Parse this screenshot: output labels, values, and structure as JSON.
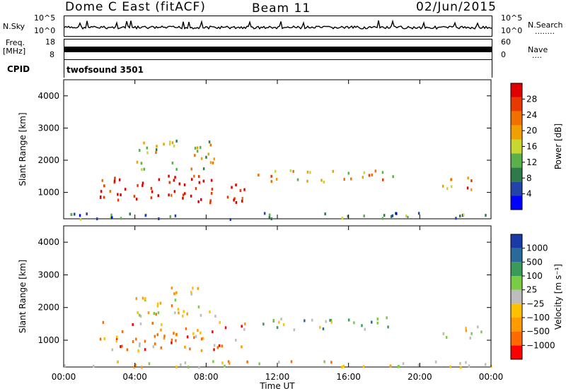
{
  "header": {
    "title": "Dome C East (fitACF)",
    "beam": "Beam 11",
    "date": "02/Jun/2015"
  },
  "nsky_panel": {
    "left_label": "N.Sky",
    "right_label": "N.Search",
    "left_ticks": [
      "10^5",
      "10^0"
    ],
    "right_ticks": [
      "10^5",
      "10^0"
    ],
    "right_marker": "........"
  },
  "freq_panel": {
    "left_label": "Freq.",
    "left_unit": "[MHz]",
    "right_label": "Nave",
    "left_ticks": [
      "18",
      "8"
    ],
    "right_ticks": [
      "60",
      "0"
    ],
    "right_marker": "...."
  },
  "cpid": {
    "label": "CPID",
    "value": "twofsound 3501"
  },
  "colors": {
    "power_scale": [
      "#0000ff",
      "#2244aa",
      "#2e7a4a",
      "#5ab04a",
      "#c8d830",
      "#f0a000",
      "#f07000",
      "#e63a00",
      "#e00000"
    ],
    "velocity_scale": [
      "#ff0000",
      "#ff6a00",
      "#ff9a00",
      "#ffc000",
      "#bdbdbd",
      "#7acc44",
      "#3a9a5a",
      "#2a6a9a",
      "#1a3aa8"
    ]
  },
  "chart_data": [
    {
      "type": "heatmap",
      "name": "power",
      "ylabel": "Slant Range [km]",
      "xlabel": "",
      "x_ticks": [
        "00:00",
        "04:00",
        "08:00",
        "12:00",
        "16:00",
        "20:00",
        "00:00"
      ],
      "y_ticks": [
        1000,
        2000,
        3000,
        4000
      ],
      "ylim": [
        180,
        4500
      ],
      "xlim_hours": [
        0,
        24
      ],
      "colorbar_label": "Power [dB]",
      "colorbar_ticks": [
        "28",
        "24",
        "20",
        "16",
        "12",
        "8",
        "4"
      ],
      "bands": [
        {
          "start_h": 2.0,
          "end_h": 10.2,
          "center_km": 1150,
          "width_km": 900,
          "level": 8
        },
        {
          "start_h": 4.0,
          "end_h": 8.5,
          "center_km": 2200,
          "width_km": 900,
          "level": 4
        },
        {
          "start_h": 10.8,
          "end_h": 18.6,
          "center_km": 1550,
          "width_km": 380,
          "level": 5
        },
        {
          "start_h": 21.2,
          "end_h": 24.0,
          "center_km": 1300,
          "width_km": 400,
          "level": 6
        },
        {
          "start_h": 0.0,
          "end_h": 24.0,
          "center_km": 300,
          "width_km": 200,
          "level": 2
        }
      ]
    },
    {
      "type": "heatmap",
      "name": "velocity",
      "ylabel": "Slant Range [km]",
      "xlabel": "Time UT",
      "x_ticks": [
        "00:00",
        "04:00",
        "08:00",
        "12:00",
        "16:00",
        "20:00",
        "00:00"
      ],
      "y_ticks": [
        1000,
        2000,
        3000,
        4000
      ],
      "ylim": [
        180,
        4500
      ],
      "xlim_hours": [
        0,
        24
      ],
      "colorbar_label": "Velocity [m s⁻¹]",
      "colorbar_ticks": [
        "1000",
        "500",
        "100",
        "25",
        "−25",
        "−100",
        "−500",
        "−1000"
      ],
      "bands": [
        {
          "start_h": 2.0,
          "end_h": 10.2,
          "center_km": 1150,
          "width_km": 900,
          "level": 2
        },
        {
          "start_h": 4.0,
          "end_h": 8.5,
          "center_km": 2200,
          "width_km": 900,
          "level": 3
        },
        {
          "start_h": 10.8,
          "end_h": 18.6,
          "center_km": 1550,
          "width_km": 380,
          "level": 5
        },
        {
          "start_h": 21.2,
          "end_h": 24.0,
          "center_km": 1300,
          "width_km": 400,
          "level": 4
        },
        {
          "start_h": 0.0,
          "end_h": 24.0,
          "center_km": 300,
          "width_km": 200,
          "level": 3
        }
      ]
    }
  ]
}
